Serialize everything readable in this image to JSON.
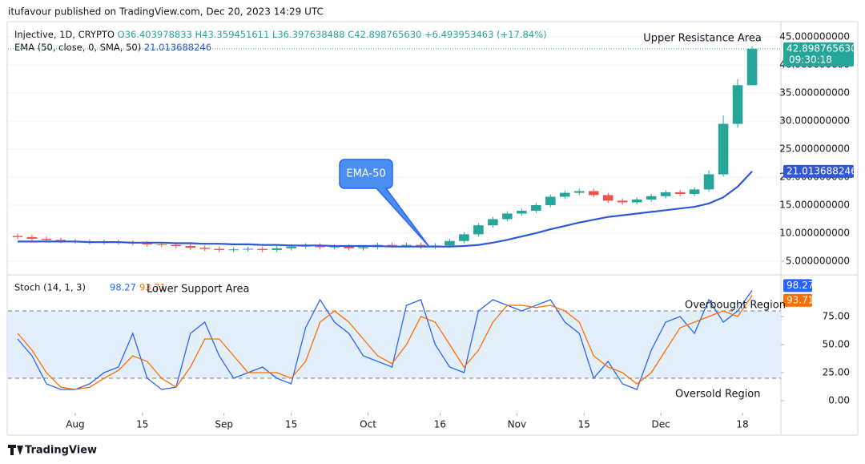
{
  "page": {
    "published": "itufavour published on TradingView.com, Dec 20, 2023 14:29 UTC",
    "brand": "TradingView"
  },
  "chart_data": [
    {
      "type": "candlestick",
      "legend": {
        "symbol": "Injective, 1D, CRYPTO",
        "open": "O36.403978833",
        "high": "H43.359451611",
        "low": "L36.397638488",
        "close": "C42.898765630",
        "change": "+6.493953463 (+17.84%)",
        "ema_name": "EMA (50, close, 0, SMA, 50)",
        "ema_value": "21.013688246"
      },
      "last_price_label": "42.898765630",
      "countdown": "09:30:18",
      "annotations": {
        "upper": "Upper Resistance Area",
        "callout": "EMA-50"
      },
      "up_color": "#26a69a",
      "down_color": "#ef5350",
      "x": [
        -12,
        -9,
        -6,
        -3,
        0,
        3,
        6,
        9,
        12,
        15,
        18,
        21,
        24,
        27,
        30,
        33,
        36,
        39,
        42,
        45,
        48,
        51,
        54,
        57,
        60,
        63,
        66,
        69,
        72,
        75,
        78,
        81,
        84,
        87,
        90,
        93,
        96,
        99,
        102,
        105,
        108,
        111,
        114,
        117,
        120,
        123,
        126,
        129,
        132,
        135,
        138,
        141
      ],
      "open": [
        9.5,
        9.3,
        9.0,
        8.8,
        8.6,
        8.5,
        8.4,
        8.5,
        8.3,
        8.2,
        8.0,
        7.9,
        7.7,
        7.4,
        7.2,
        7.0,
        7.1,
        7.2,
        7.0,
        7.3,
        7.6,
        7.8,
        7.5,
        7.6,
        7.3,
        7.5,
        7.9,
        7.8,
        7.9,
        7.6,
        7.8,
        8.6,
        9.8,
        11.4,
        12.5,
        13.5,
        14.0,
        15.0,
        16.5,
        17.2,
        17.5,
        16.8,
        15.8,
        15.5,
        16.0,
        16.6,
        17.3,
        17.0,
        17.8,
        20.5,
        29.5,
        36.403978833
      ],
      "high": [
        9.9,
        9.7,
        9.4,
        9.2,
        9.0,
        8.9,
        8.9,
        8.9,
        8.7,
        8.6,
        8.4,
        8.3,
        8.1,
        7.8,
        7.6,
        7.5,
        7.6,
        7.6,
        7.7,
        8.0,
        8.2,
        8.2,
        8.0,
        8.0,
        7.9,
        8.3,
        8.3,
        8.3,
        8.3,
        8.2,
        9.0,
        10.2,
        11.8,
        12.9,
        13.9,
        14.4,
        15.4,
        16.9,
        17.6,
        17.9,
        17.9,
        17.2,
        16.2,
        16.4,
        17.0,
        17.7,
        17.7,
        18.2,
        21.2,
        31.0,
        37.5,
        43.359451611
      ],
      "low": [
        8.9,
        8.6,
        8.4,
        8.2,
        8.1,
        8.0,
        8.0,
        7.9,
        7.8,
        7.6,
        7.5,
        7.3,
        7.0,
        6.8,
        6.6,
        6.6,
        6.7,
        6.6,
        6.6,
        6.9,
        7.2,
        7.1,
        7.1,
        6.9,
        6.9,
        7.1,
        7.4,
        7.4,
        7.2,
        7.2,
        7.4,
        8.2,
        9.4,
        11.0,
        12.1,
        13.1,
        13.6,
        14.6,
        16.1,
        16.8,
        16.4,
        15.4,
        15.1,
        15.1,
        15.6,
        16.2,
        16.6,
        16.6,
        17.4,
        20.1,
        28.8,
        36.397638488
      ],
      "close": [
        9.3,
        9.0,
        8.8,
        8.6,
        8.5,
        8.4,
        8.5,
        8.3,
        8.2,
        8.0,
        7.9,
        7.7,
        7.4,
        7.2,
        7.0,
        7.1,
        7.2,
        7.0,
        7.3,
        7.6,
        7.8,
        7.5,
        7.6,
        7.3,
        7.5,
        7.9,
        7.8,
        7.9,
        7.6,
        7.8,
        8.6,
        9.8,
        11.4,
        12.5,
        13.5,
        14.0,
        15.0,
        16.5,
        17.2,
        17.5,
        16.8,
        15.8,
        15.5,
        16.0,
        16.6,
        17.3,
        17.0,
        17.8,
        20.5,
        29.5,
        36.4,
        42.89876563
      ],
      "series": [
        {
          "name": "EMA",
          "color": "#2f58d8",
          "values": [
            8.5,
            8.5,
            8.5,
            8.5,
            8.5,
            8.4,
            8.4,
            8.4,
            8.3,
            8.3,
            8.3,
            8.2,
            8.2,
            8.1,
            8.1,
            8.0,
            8.0,
            7.9,
            7.9,
            7.8,
            7.8,
            7.8,
            7.7,
            7.7,
            7.7,
            7.7,
            7.6,
            7.6,
            7.6,
            7.6,
            7.6,
            7.7,
            7.9,
            8.3,
            8.8,
            9.4,
            10.0,
            10.7,
            11.3,
            11.9,
            12.4,
            12.9,
            13.2,
            13.5,
            13.8,
            14.1,
            14.4,
            14.7,
            15.3,
            16.4,
            18.3,
            21.013688246
          ]
        }
      ],
      "xlim": [
        -14,
        147
      ],
      "ylim": [
        2.7,
        47.6
      ],
      "yticks": [
        {
          "value": 5,
          "label": "5.000000000"
        },
        {
          "value": 10,
          "label": "10.000000000"
        },
        {
          "value": 15,
          "label": "15.000000000"
        },
        {
          "value": 20,
          "label": "20.000000000"
        },
        {
          "value": 25,
          "label": "25.000000000"
        },
        {
          "value": 30,
          "label": "30.000000000"
        },
        {
          "value": 35,
          "label": "35.000000000"
        },
        {
          "value": 40,
          "label": "40.000000000"
        },
        {
          "value": 45,
          "label": "45.000000000"
        }
      ],
      "grid": true
    },
    {
      "type": "line",
      "title": "Stoch (14, 1, 3)",
      "value_labels": [
        "98.27",
        "93.71"
      ],
      "annotations": {
        "support": "Lower Support Area",
        "overbought": "Overbought Region",
        "oversold": "Oversold Region"
      },
      "band": [
        20,
        80
      ],
      "band_color": "#e3f0fc",
      "x": [
        -12,
        -9,
        -6,
        -3,
        0,
        3,
        6,
        9,
        12,
        15,
        18,
        21,
        24,
        27,
        30,
        33,
        36,
        39,
        42,
        45,
        48,
        51,
        54,
        57,
        60,
        63,
        66,
        69,
        72,
        75,
        78,
        81,
        84,
        87,
        90,
        93,
        96,
        99,
        102,
        105,
        108,
        111,
        114,
        117,
        120,
        123,
        126,
        129,
        132,
        135,
        138,
        141
      ],
      "series": [
        {
          "name": "K",
          "color": "#2962ff",
          "values": [
            55,
            40,
            15,
            10,
            10,
            15,
            25,
            30,
            60,
            20,
            10,
            12,
            60,
            70,
            40,
            20,
            25,
            30,
            20,
            15,
            65,
            90,
            70,
            60,
            40,
            35,
            30,
            85,
            90,
            50,
            30,
            25,
            80,
            90,
            85,
            80,
            85,
            90,
            70,
            60,
            20,
            35,
            15,
            10,
            45,
            70,
            75,
            60,
            90,
            70,
            80,
            98.27
          ]
        },
        {
          "name": "D",
          "color": "#ff6d00",
          "values": [
            60,
            45,
            25,
            12,
            10,
            12,
            20,
            27,
            40,
            35,
            20,
            12,
            30,
            55,
            55,
            40,
            25,
            25,
            25,
            20,
            35,
            70,
            80,
            70,
            55,
            40,
            33,
            50,
            75,
            70,
            50,
            30,
            45,
            70,
            85,
            85,
            83,
            85,
            80,
            70,
            40,
            30,
            25,
            15,
            25,
            45,
            65,
            70,
            75,
            80,
            75,
            93.71
          ]
        }
      ],
      "xlim": [
        -14,
        147
      ],
      "ylim": [
        -10.7,
        110.7
      ],
      "yticks": [
        {
          "value": 0,
          "label": "0.00"
        },
        {
          "value": 25,
          "label": "25.00"
        },
        {
          "value": 50,
          "label": "50.00"
        },
        {
          "value": 75,
          "label": "75.00"
        }
      ],
      "xticks": [
        {
          "value": 0,
          "label": "Aug"
        },
        {
          "value": 14,
          "label": "15"
        },
        {
          "value": 31,
          "label": "Sep"
        },
        {
          "value": 45,
          "label": "15"
        },
        {
          "value": 61,
          "label": "Oct"
        },
        {
          "value": 76,
          "label": "16"
        },
        {
          "value": 92,
          "label": "Nov"
        },
        {
          "value": 106,
          "label": "15"
        },
        {
          "value": 122,
          "label": "Dec"
        },
        {
          "value": 139,
          "label": "18"
        }
      ]
    }
  ]
}
